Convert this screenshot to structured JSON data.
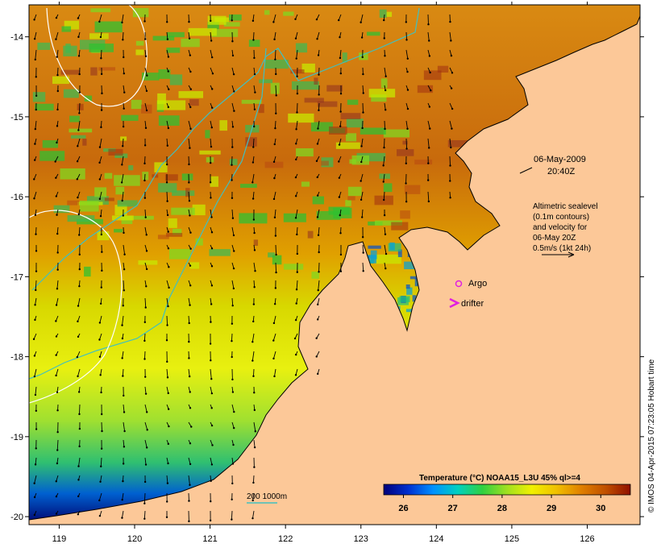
{
  "map": {
    "date_label": "06-May-2009",
    "time_label": "20:40Z",
    "altimetry_lines": [
      "Altimetric sealevel",
      "(0.1m contours)",
      "and velocity for",
      "06-May 20Z",
      "0.5m/s (1kt 24h)"
    ],
    "legend": {
      "argo_label": "Argo",
      "drifter_label": "drifter",
      "argo_color": "#e020e0",
      "drifter_color": "#e020e0"
    },
    "bathymetry_label": "200  1000m",
    "bathymetry_color": "#40c0c0",
    "credit": "© IMOS 04-Apr-2015 07:23:05 Hobart time",
    "colorbar": {
      "title": "Temperature (°C) NOAA15_L3U 45% ql>=4",
      "ticks": [
        "26",
        "27",
        "28",
        "29",
        "30"
      ],
      "range": [
        25.6,
        30.6
      ],
      "colors": [
        "#00007a",
        "#0030d0",
        "#0090ff",
        "#00d0c0",
        "#30d040",
        "#a0e020",
        "#f0f000",
        "#f0c000",
        "#e08000",
        "#c05000",
        "#901000"
      ]
    },
    "land_color": "#fcc898",
    "axes": {
      "x_ticks": [
        "119",
        "120",
        "121",
        "122",
        "123",
        "124",
        "125",
        "126"
      ],
      "y_ticks": [
        "-14",
        "-15",
        "-16",
        "-17",
        "-18",
        "-19",
        "-20"
      ],
      "xlim": [
        118.6,
        126.7
      ],
      "ylim": [
        -20.1,
        -13.6
      ]
    }
  }
}
